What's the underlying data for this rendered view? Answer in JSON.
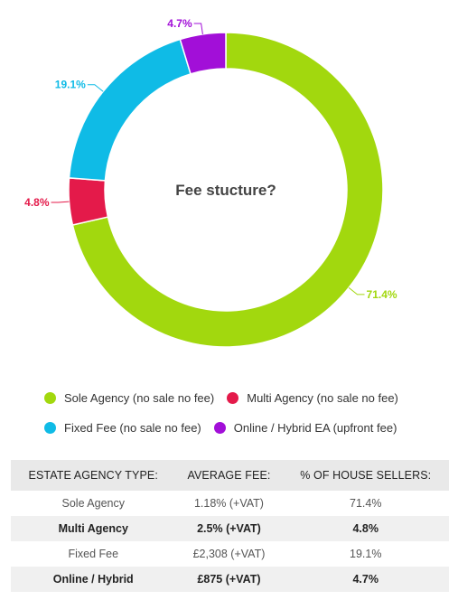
{
  "chart_data": {
    "type": "pie",
    "title": "Fee stucture?",
    "categories": [
      "Sole Agency (no sale no fee)",
      "Multi Agency (no sale no fee)",
      "Fixed Fee (no sale no fee)",
      "Online / Hybrid EA (upfront fee)"
    ],
    "values": [
      71.4,
      4.8,
      19.1,
      4.7
    ],
    "value_labels": [
      "71.4%",
      "4.8%",
      "19.1%",
      "4.7%"
    ],
    "colors": [
      "#a2d80e",
      "#e41a4a",
      "#0fbbe6",
      "#a20fd8"
    ],
    "donut": true,
    "legend_position": "bottom"
  },
  "table": {
    "headers": [
      "ESTATE AGENCY TYPE:",
      "AVERAGE FEE:",
      "% OF HOUSE SELLERS:"
    ],
    "rows": [
      [
        "Sole Agency",
        "1.18% (+VAT)",
        "71.4%"
      ],
      [
        "Multi Agency",
        "2.5% (+VAT)",
        "4.8%"
      ],
      [
        "Fixed Fee",
        "£2,308 (+VAT)",
        "19.1%"
      ],
      [
        "Online / Hybrid",
        "£875 (+VAT)",
        "4.7%"
      ]
    ]
  }
}
